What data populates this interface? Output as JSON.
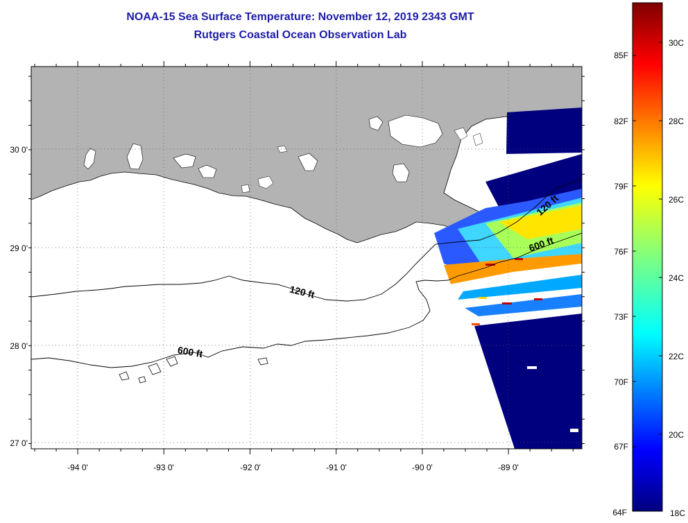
{
  "header": {
    "title_line1": "NOAA-15 Sea Surface Temperature:  November 12, 2019 2343 GMT",
    "title_line2": "Rutgers Coastal Ocean Observation Lab"
  },
  "map": {
    "lon_ticks": [
      "-94 0'",
      "-93 0'",
      "-92 0'",
      "-91 0'",
      "-90 0'",
      "-89 0'"
    ],
    "lat_ticks": [
      "30 0'",
      "29 0'",
      "28 0'",
      "27 0'"
    ],
    "contours": {
      "shallow_label": "120 ft",
      "deep_label": "600 ft"
    },
    "colors": {
      "land": "#b3b3b3",
      "ocean_nodata": "#ffffff",
      "frame": "#000000"
    }
  },
  "colorbar": {
    "fahrenheit_labels": [
      "85F",
      "82F",
      "79F",
      "76F",
      "73F",
      "70F",
      "67F",
      "64F"
    ],
    "celsius_labels": [
      "30C",
      "28C",
      "26C",
      "24C",
      "22C",
      "20C",
      "18C"
    ],
    "scale": "jet"
  }
}
